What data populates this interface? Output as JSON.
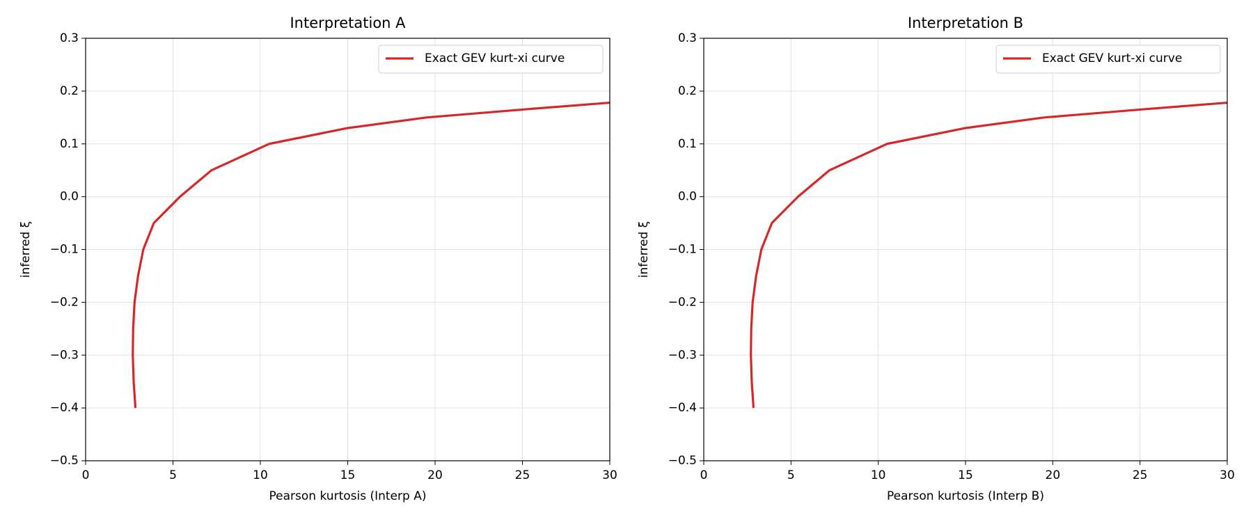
{
  "chart_data": [
    {
      "type": "line",
      "title": "Interpretation A",
      "xlabel": "Pearson kurtosis (Interp A)",
      "ylabel": "inferred ξ",
      "x": [
        2.85,
        2.75,
        2.7,
        2.72,
        2.8,
        3.0,
        3.3,
        3.9,
        5.4,
        7.2,
        10.5,
        15,
        19.5,
        25,
        30
      ],
      "series": [
        {
          "name": "Exact GEV kurt-xi curve",
          "color": "#d62728",
          "values": [
            -0.4,
            -0.35,
            -0.3,
            -0.25,
            -0.2,
            -0.15,
            -0.1,
            -0.05,
            0.0,
            0.05,
            0.1,
            0.13,
            0.15,
            0.165,
            0.178
          ]
        }
      ],
      "xlim": [
        0,
        30
      ],
      "xticks": [
        0,
        5,
        10,
        15,
        20,
        25,
        30
      ],
      "ylim": [
        -0.5,
        0.3
      ],
      "yticks": [
        {
          "value": -0.5,
          "label": "−0.5"
        },
        {
          "value": -0.4,
          "label": "−0.4"
        },
        {
          "value": -0.3,
          "label": "−0.3"
        },
        {
          "value": -0.2,
          "label": "−0.2"
        },
        {
          "value": -0.1,
          "label": "−0.1"
        },
        {
          "value": 0,
          "label": "0.0"
        },
        0.1,
        0.2,
        0.3
      ],
      "grid": true,
      "legend": "upper-right"
    },
    {
      "type": "line",
      "title": "Interpretation B",
      "xlabel": "Pearson kurtosis (Interp B)",
      "ylabel": "inferred ξ",
      "x": [
        2.85,
        2.75,
        2.7,
        2.72,
        2.8,
        3.0,
        3.3,
        3.9,
        5.4,
        7.2,
        10.5,
        15,
        19.5,
        25,
        30
      ],
      "series": [
        {
          "name": "Exact GEV kurt-xi curve",
          "color": "#d62728",
          "values": [
            -0.4,
            -0.35,
            -0.3,
            -0.25,
            -0.2,
            -0.15,
            -0.1,
            -0.05,
            0.0,
            0.05,
            0.1,
            0.13,
            0.15,
            0.165,
            0.178
          ]
        }
      ],
      "xlim": [
        0,
        30
      ],
      "xticks": [
        0,
        5,
        10,
        15,
        20,
        25,
        30
      ],
      "ylim": [
        -0.5,
        0.3
      ],
      "yticks": [
        {
          "value": -0.5,
          "label": "−0.5"
        },
        {
          "value": -0.4,
          "label": "−0.4"
        },
        {
          "value": -0.3,
          "label": "−0.3"
        },
        {
          "value": -0.2,
          "label": "−0.2"
        },
        {
          "value": -0.1,
          "label": "−0.1"
        },
        {
          "value": 0,
          "label": "0.0"
        },
        0.1,
        0.2,
        0.3
      ],
      "grid": true,
      "legend": "upper-right"
    }
  ]
}
